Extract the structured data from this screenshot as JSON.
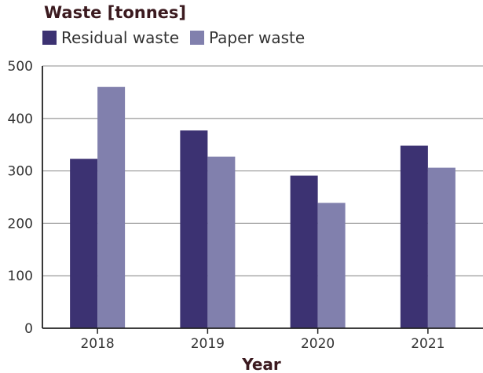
{
  "chart_data": {
    "type": "bar",
    "title": "Waste [tonnes]",
    "xlabel": "Year",
    "ylabel": "",
    "categories": [
      "2018",
      "2019",
      "2020",
      "2021"
    ],
    "series": [
      {
        "name": "Residual waste",
        "values": [
          323,
          377,
          291,
          348
        ],
        "color": "#3c3272"
      },
      {
        "name": "Paper waste",
        "values": [
          460,
          327,
          239,
          306
        ],
        "color": "#8180ad"
      }
    ],
    "ylim": [
      0,
      500
    ],
    "yticks": [
      "0",
      "100",
      "200",
      "300",
      "400",
      "500"
    ],
    "grid": true,
    "legend_position": "top-left"
  }
}
